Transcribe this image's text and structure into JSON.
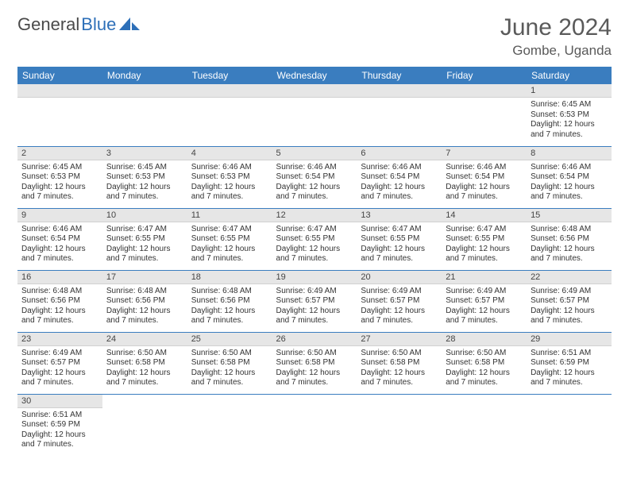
{
  "brand": {
    "word1": "General",
    "word2": "Blue"
  },
  "title": "June 2024",
  "location": "Gombe, Uganda",
  "colors": {
    "header_bg": "#3a7dbf",
    "header_text": "#ffffff",
    "daynum_bg": "#e6e6e6",
    "cell_border": "#3a7dbf",
    "body_text": "#333333",
    "title_text": "#5a5a5a",
    "logo_blue": "#2d6fb8"
  },
  "day_labels": [
    "Sunday",
    "Monday",
    "Tuesday",
    "Wednesday",
    "Thursday",
    "Friday",
    "Saturday"
  ],
  "weeks": [
    [
      null,
      null,
      null,
      null,
      null,
      null,
      {
        "n": "1",
        "sunrise": "Sunrise: 6:45 AM",
        "sunset": "Sunset: 6:53 PM",
        "daylight": "Daylight: 12 hours and 7 minutes."
      }
    ],
    [
      {
        "n": "2",
        "sunrise": "Sunrise: 6:45 AM",
        "sunset": "Sunset: 6:53 PM",
        "daylight": "Daylight: 12 hours and 7 minutes."
      },
      {
        "n": "3",
        "sunrise": "Sunrise: 6:45 AM",
        "sunset": "Sunset: 6:53 PM",
        "daylight": "Daylight: 12 hours and 7 minutes."
      },
      {
        "n": "4",
        "sunrise": "Sunrise: 6:46 AM",
        "sunset": "Sunset: 6:53 PM",
        "daylight": "Daylight: 12 hours and 7 minutes."
      },
      {
        "n": "5",
        "sunrise": "Sunrise: 6:46 AM",
        "sunset": "Sunset: 6:54 PM",
        "daylight": "Daylight: 12 hours and 7 minutes."
      },
      {
        "n": "6",
        "sunrise": "Sunrise: 6:46 AM",
        "sunset": "Sunset: 6:54 PM",
        "daylight": "Daylight: 12 hours and 7 minutes."
      },
      {
        "n": "7",
        "sunrise": "Sunrise: 6:46 AM",
        "sunset": "Sunset: 6:54 PM",
        "daylight": "Daylight: 12 hours and 7 minutes."
      },
      {
        "n": "8",
        "sunrise": "Sunrise: 6:46 AM",
        "sunset": "Sunset: 6:54 PM",
        "daylight": "Daylight: 12 hours and 7 minutes."
      }
    ],
    [
      {
        "n": "9",
        "sunrise": "Sunrise: 6:46 AM",
        "sunset": "Sunset: 6:54 PM",
        "daylight": "Daylight: 12 hours and 7 minutes."
      },
      {
        "n": "10",
        "sunrise": "Sunrise: 6:47 AM",
        "sunset": "Sunset: 6:55 PM",
        "daylight": "Daylight: 12 hours and 7 minutes."
      },
      {
        "n": "11",
        "sunrise": "Sunrise: 6:47 AM",
        "sunset": "Sunset: 6:55 PM",
        "daylight": "Daylight: 12 hours and 7 minutes."
      },
      {
        "n": "12",
        "sunrise": "Sunrise: 6:47 AM",
        "sunset": "Sunset: 6:55 PM",
        "daylight": "Daylight: 12 hours and 7 minutes."
      },
      {
        "n": "13",
        "sunrise": "Sunrise: 6:47 AM",
        "sunset": "Sunset: 6:55 PM",
        "daylight": "Daylight: 12 hours and 7 minutes."
      },
      {
        "n": "14",
        "sunrise": "Sunrise: 6:47 AM",
        "sunset": "Sunset: 6:55 PM",
        "daylight": "Daylight: 12 hours and 7 minutes."
      },
      {
        "n": "15",
        "sunrise": "Sunrise: 6:48 AM",
        "sunset": "Sunset: 6:56 PM",
        "daylight": "Daylight: 12 hours and 7 minutes."
      }
    ],
    [
      {
        "n": "16",
        "sunrise": "Sunrise: 6:48 AM",
        "sunset": "Sunset: 6:56 PM",
        "daylight": "Daylight: 12 hours and 7 minutes."
      },
      {
        "n": "17",
        "sunrise": "Sunrise: 6:48 AM",
        "sunset": "Sunset: 6:56 PM",
        "daylight": "Daylight: 12 hours and 7 minutes."
      },
      {
        "n": "18",
        "sunrise": "Sunrise: 6:48 AM",
        "sunset": "Sunset: 6:56 PM",
        "daylight": "Daylight: 12 hours and 7 minutes."
      },
      {
        "n": "19",
        "sunrise": "Sunrise: 6:49 AM",
        "sunset": "Sunset: 6:57 PM",
        "daylight": "Daylight: 12 hours and 7 minutes."
      },
      {
        "n": "20",
        "sunrise": "Sunrise: 6:49 AM",
        "sunset": "Sunset: 6:57 PM",
        "daylight": "Daylight: 12 hours and 7 minutes."
      },
      {
        "n": "21",
        "sunrise": "Sunrise: 6:49 AM",
        "sunset": "Sunset: 6:57 PM",
        "daylight": "Daylight: 12 hours and 7 minutes."
      },
      {
        "n": "22",
        "sunrise": "Sunrise: 6:49 AM",
        "sunset": "Sunset: 6:57 PM",
        "daylight": "Daylight: 12 hours and 7 minutes."
      }
    ],
    [
      {
        "n": "23",
        "sunrise": "Sunrise: 6:49 AM",
        "sunset": "Sunset: 6:57 PM",
        "daylight": "Daylight: 12 hours and 7 minutes."
      },
      {
        "n": "24",
        "sunrise": "Sunrise: 6:50 AM",
        "sunset": "Sunset: 6:58 PM",
        "daylight": "Daylight: 12 hours and 7 minutes."
      },
      {
        "n": "25",
        "sunrise": "Sunrise: 6:50 AM",
        "sunset": "Sunset: 6:58 PM",
        "daylight": "Daylight: 12 hours and 7 minutes."
      },
      {
        "n": "26",
        "sunrise": "Sunrise: 6:50 AM",
        "sunset": "Sunset: 6:58 PM",
        "daylight": "Daylight: 12 hours and 7 minutes."
      },
      {
        "n": "27",
        "sunrise": "Sunrise: 6:50 AM",
        "sunset": "Sunset: 6:58 PM",
        "daylight": "Daylight: 12 hours and 7 minutes."
      },
      {
        "n": "28",
        "sunrise": "Sunrise: 6:50 AM",
        "sunset": "Sunset: 6:58 PM",
        "daylight": "Daylight: 12 hours and 7 minutes."
      },
      {
        "n": "29",
        "sunrise": "Sunrise: 6:51 AM",
        "sunset": "Sunset: 6:59 PM",
        "daylight": "Daylight: 12 hours and 7 minutes."
      }
    ],
    [
      {
        "n": "30",
        "sunrise": "Sunrise: 6:51 AM",
        "sunset": "Sunset: 6:59 PM",
        "daylight": "Daylight: 12 hours and 7 minutes."
      },
      null,
      null,
      null,
      null,
      null,
      null
    ]
  ]
}
